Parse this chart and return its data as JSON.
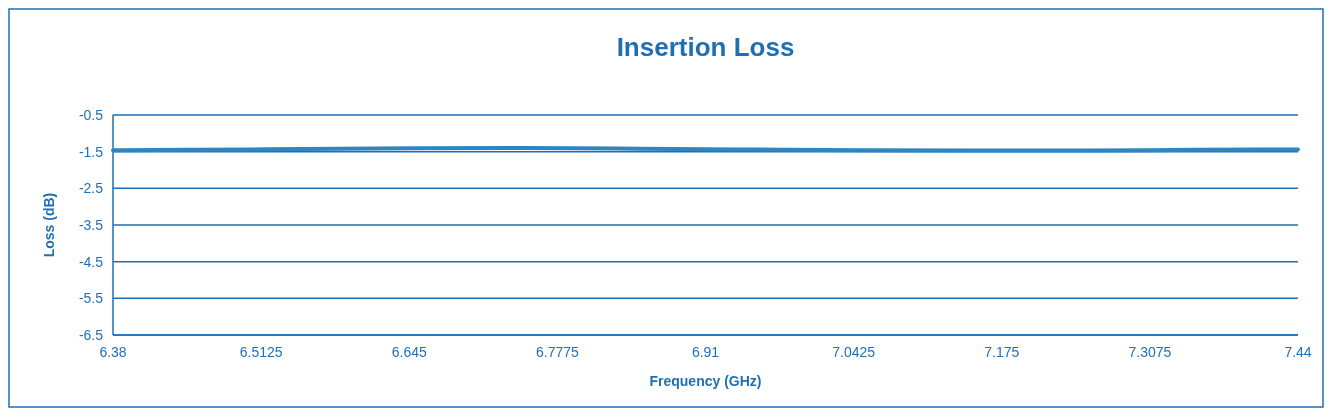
{
  "chart_data": {
    "type": "line",
    "title": "Insertion Loss",
    "xlabel": "Frequency (GHz)",
    "ylabel": "Loss (dB)",
    "x": [
      6.38,
      6.45,
      6.55,
      6.65,
      6.75,
      6.85,
      6.95,
      7.05,
      7.15,
      7.25,
      7.35,
      7.44
    ],
    "series": [
      {
        "color": "#2e86c1",
        "values": [
          -1.46,
          -1.45,
          -1.43,
          -1.41,
          -1.4,
          -1.42,
          -1.44,
          -1.46,
          -1.47,
          -1.47,
          -1.45,
          -1.44
        ]
      }
    ],
    "xlim": [
      6.38,
      7.44
    ],
    "xticks": [
      6.38,
      6.5125,
      6.645,
      6.7775,
      6.91,
      7.0425,
      7.175,
      7.3075,
      7.44
    ],
    "ylim": [
      -6.5,
      -0.5
    ],
    "yticks": [
      -0.5,
      -1.5,
      -2.5,
      -3.5,
      -4.5,
      -5.5,
      -6.5
    ],
    "grid": "y",
    "marker": "none",
    "line_style": "solid"
  }
}
